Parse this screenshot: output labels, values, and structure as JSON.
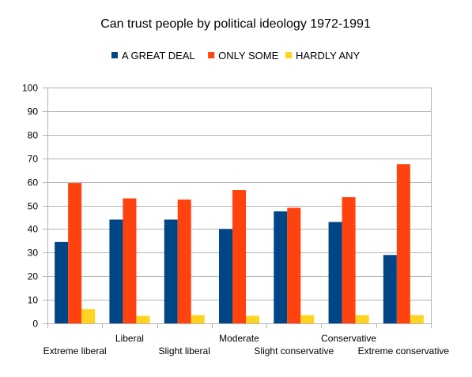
{
  "chart_data": {
    "type": "bar",
    "title": "Can trust people by political ideology 1972-1991",
    "xlabel": "",
    "ylabel": "",
    "ylim": [
      0,
      100
    ],
    "yticks": [
      0,
      10,
      20,
      30,
      40,
      50,
      60,
      70,
      80,
      90,
      100
    ],
    "grid": true,
    "legend_position": "top",
    "categories": [
      "Extreme liberal",
      "Liberal",
      "Slight liberal",
      "Moderate",
      "Slight conservative",
      "Conservative",
      "Extreme conservative"
    ],
    "series": [
      {
        "name": "A GREAT DEAL",
        "color": "#004586",
        "values": [
          34.5,
          44,
          44,
          40,
          47.5,
          43,
          29
        ]
      },
      {
        "name": "ONLY SOME",
        "color": "#ff420e",
        "values": [
          59.5,
          53,
          52.5,
          56.5,
          49,
          53.5,
          67.5
        ]
      },
      {
        "name": "HARDLY ANY",
        "color": "#ffd320",
        "values": [
          6,
          3.2,
          3.5,
          3.2,
          3.5,
          3.5,
          3.5
        ]
      }
    ]
  }
}
